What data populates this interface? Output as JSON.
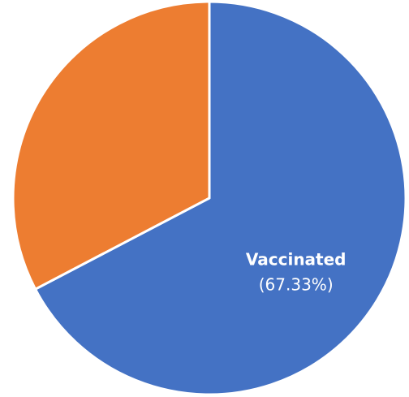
{
  "chart_data": {
    "type": "pie",
    "categories": [
      "Vaccinated",
      ""
    ],
    "values": [
      67.33,
      32.67
    ],
    "data_labels": [
      {
        "name": "Vaccinated",
        "percent": "(67.33%)"
      },
      null
    ],
    "colors": [
      "#4472C4",
      "#ED7D31"
    ],
    "border_color": "#FFFFFF",
    "label_color": "#FFFFFF",
    "start": "12 o'clock",
    "direction": "clockwise",
    "legend": "none",
    "title": ""
  }
}
